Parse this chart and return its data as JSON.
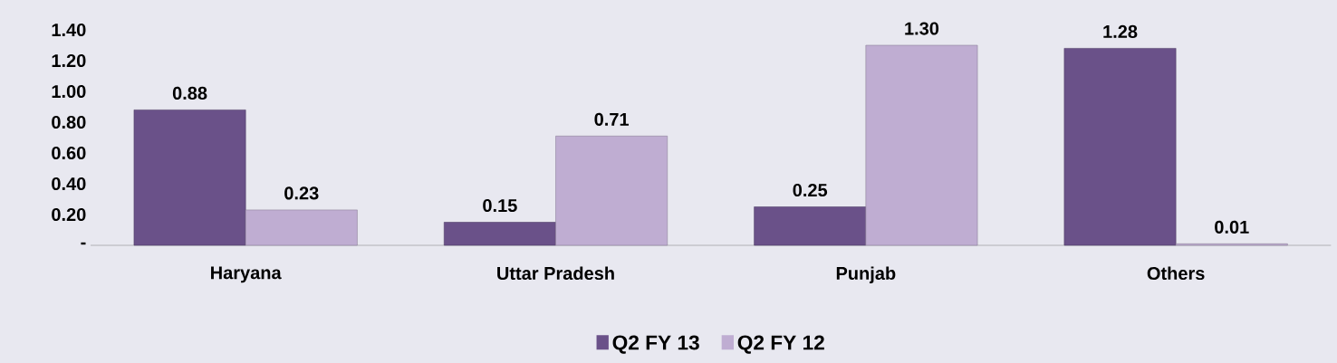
{
  "chart_data": {
    "type": "bar",
    "categories": [
      "Haryana",
      "Uttar Pradesh",
      "Punjab",
      "Others"
    ],
    "series": [
      {
        "name": "Q2 FY 13",
        "color": "#6a5189",
        "values": [
          0.88,
          0.15,
          0.25,
          1.28
        ],
        "value_labels": [
          "0.88",
          "0.15",
          "0.25",
          "1.28"
        ]
      },
      {
        "name": "Q2 FY 12",
        "color": "#bfadd2",
        "values": [
          0.23,
          0.71,
          1.3,
          0.01
        ],
        "value_labels": [
          "0.23",
          "0.71",
          "1.30",
          "0.01"
        ]
      }
    ],
    "ylim": [
      0,
      1.4
    ],
    "yticks": [
      {
        "value": 0,
        "label": "-"
      },
      {
        "value": 0.2,
        "label": "0.20"
      },
      {
        "value": 0.4,
        "label": "0.40"
      },
      {
        "value": 0.6,
        "label": "0.60"
      },
      {
        "value": 0.8,
        "label": "0.80"
      },
      {
        "value": 1.0,
        "label": "1.00"
      },
      {
        "value": 1.2,
        "label": "1.20"
      },
      {
        "value": 1.4,
        "label": "1.40"
      }
    ],
    "legend": "bottom"
  }
}
